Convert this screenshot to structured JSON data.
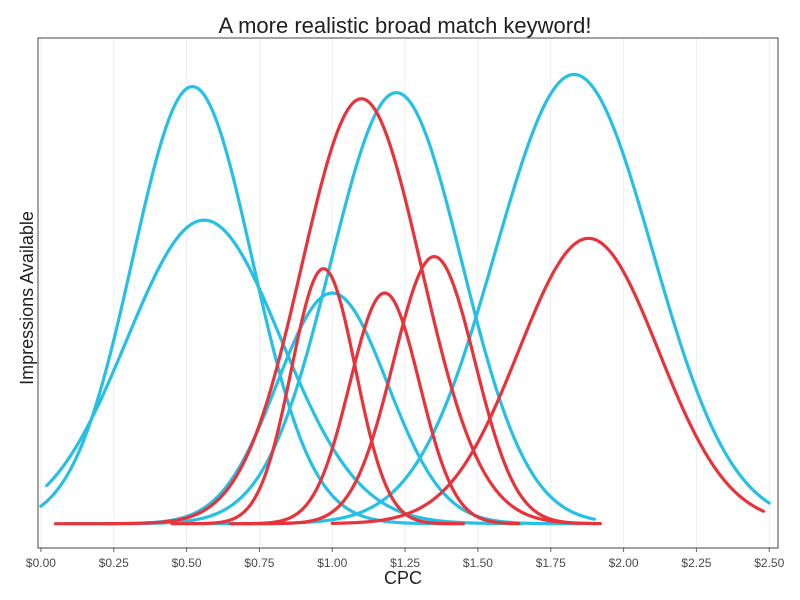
{
  "chart_data": {
    "type": "line",
    "title": "A more realistic broad match keyword!",
    "xlabel": "CPC",
    "ylabel": "Impressions Available",
    "xlim": [
      -0.01,
      2.53
    ],
    "ylim": [
      -0.2,
      4.0
    ],
    "grid": true,
    "legend": "none",
    "x_ticks": [
      "$0.00",
      "$0.25",
      "$0.50",
      "$0.75",
      "$1.00",
      "$1.25",
      "$1.50",
      "$1.75",
      "$2.00",
      "$2.25",
      "$2.50"
    ],
    "series": [
      {
        "color": "#26C0E6",
        "mean": 0.52,
        "sd": 0.205,
        "peak": 3.6,
        "x": [
          0.0,
          1.42
        ]
      },
      {
        "color": "#26C0E6",
        "mean": 0.56,
        "sd": 0.265,
        "peak": 2.5,
        "x": [
          0.02,
          1.65
        ]
      },
      {
        "color": "#26C0E6",
        "mean": 1.0,
        "sd": 0.19,
        "peak": 1.9,
        "x": [
          0.08,
          1.85
        ]
      },
      {
        "color": "#26C0E6",
        "mean": 1.22,
        "sd": 0.225,
        "peak": 3.55,
        "x": [
          0.3,
          1.9
        ]
      },
      {
        "color": "#26C0E6",
        "mean": 1.83,
        "sd": 0.27,
        "peak": 3.7,
        "x": [
          0.55,
          2.5
        ]
      },
      {
        "color": "#E8333A",
        "mean": 0.97,
        "sd": 0.11,
        "peak": 2.1,
        "x": [
          0.45,
          1.45
        ]
      },
      {
        "color": "#E8333A",
        "mean": 1.1,
        "sd": 0.205,
        "peak": 3.5,
        "x": [
          0.05,
          1.92
        ]
      },
      {
        "color": "#E8333A",
        "mean": 1.18,
        "sd": 0.12,
        "peak": 1.9,
        "x": [
          0.65,
          1.64
        ]
      },
      {
        "color": "#E8333A",
        "mean": 1.35,
        "sd": 0.14,
        "peak": 2.2,
        "x": [
          0.7,
          1.9
        ]
      },
      {
        "color": "#E8333A",
        "mean": 1.88,
        "sd": 0.24,
        "peak": 2.35,
        "x": [
          1.0,
          2.48
        ]
      }
    ]
  }
}
